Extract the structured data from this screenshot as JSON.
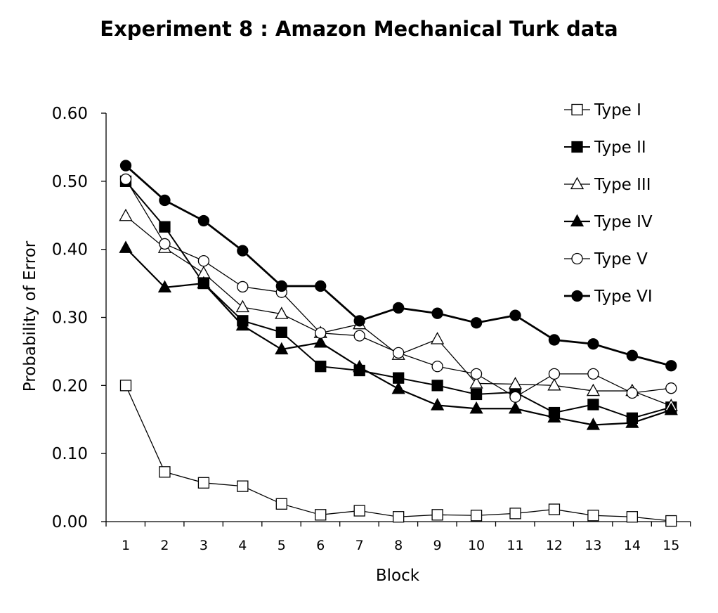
{
  "chart_data": {
    "type": "line",
    "title": "Experiment 8 : Amazon Mechanical Turk data",
    "xlabel": "Block",
    "ylabel": "Probability of Error",
    "categories": [
      "1",
      "2",
      "3",
      "4",
      "5",
      "6",
      "7",
      "8",
      "9",
      "10",
      "11",
      "12",
      "13",
      "14",
      "15"
    ],
    "y_ticks": [
      "0.00",
      "0.10",
      "0.20",
      "0.30",
      "0.40",
      "0.50",
      "0.60"
    ],
    "ylim": [
      0,
      0.6
    ],
    "grid": false,
    "legend_position": "top-right",
    "series": [
      {
        "name": "Type I",
        "marker": "square",
        "fill": "open",
        "values": [
          0.2,
          0.073,
          0.057,
          0.052,
          0.026,
          0.01,
          0.016,
          0.007,
          0.01,
          0.009,
          0.012,
          0.018,
          0.009,
          0.007,
          0.001
        ]
      },
      {
        "name": "Type II",
        "marker": "square",
        "fill": "filled",
        "values": [
          0.5,
          0.433,
          0.35,
          0.295,
          0.278,
          0.228,
          0.222,
          0.211,
          0.2,
          0.187,
          0.19,
          0.16,
          0.172,
          0.152,
          0.168
        ]
      },
      {
        "name": "Type III",
        "marker": "triangle",
        "fill": "open",
        "values": [
          0.449,
          0.402,
          0.365,
          0.315,
          0.305,
          0.277,
          0.29,
          0.245,
          0.268,
          0.203,
          0.202,
          0.2,
          0.192,
          0.192,
          0.17
        ]
      },
      {
        "name": "Type IV",
        "marker": "triangle",
        "fill": "filled",
        "values": [
          0.402,
          0.344,
          0.35,
          0.288,
          0.253,
          0.263,
          0.227,
          0.195,
          0.171,
          0.166,
          0.166,
          0.153,
          0.142,
          0.145,
          0.164
        ]
      },
      {
        "name": "Type V",
        "marker": "circle",
        "fill": "open",
        "values": [
          0.503,
          0.408,
          0.383,
          0.345,
          0.337,
          0.277,
          0.273,
          0.248,
          0.228,
          0.217,
          0.183,
          0.217,
          0.217,
          0.189,
          0.196
        ]
      },
      {
        "name": "Type VI",
        "marker": "circle",
        "fill": "filled",
        "values": [
          0.523,
          0.472,
          0.442,
          0.398,
          0.346,
          0.346,
          0.295,
          0.314,
          0.306,
          0.292,
          0.303,
          0.267,
          0.261,
          0.244,
          0.229
        ]
      }
    ]
  }
}
